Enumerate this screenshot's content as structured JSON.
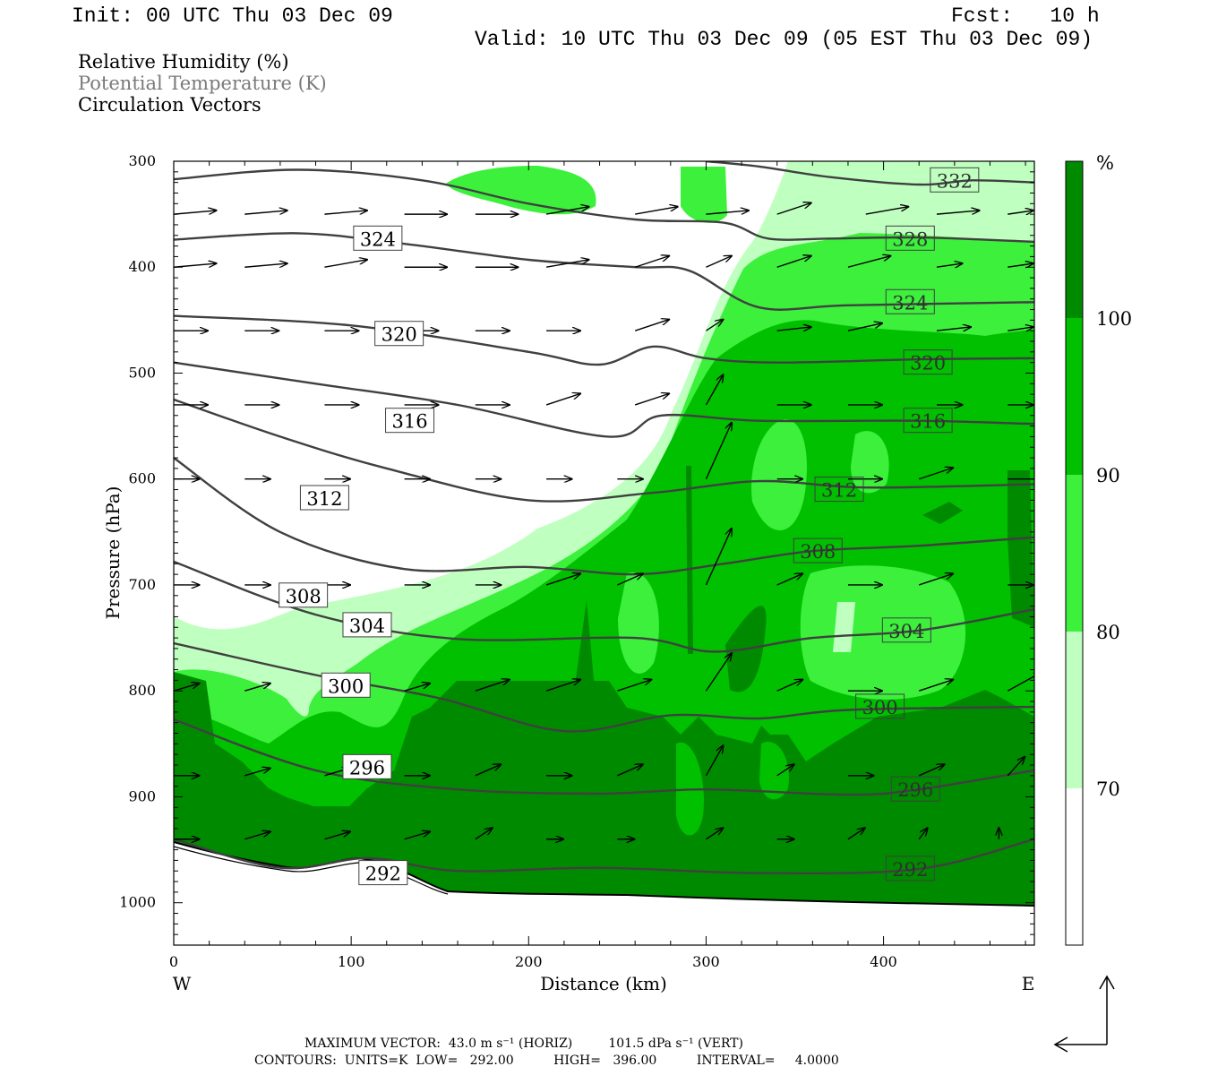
{
  "header": {
    "init": "Init: 00 UTC Thu 03 Dec 09",
    "fcst": "Fcst:   10 h",
    "valid": "Valid: 10 UTC Thu 03 Dec 09 (05 EST Thu 03 Dec 09)"
  },
  "legend": {
    "line1": "Relative Humidity (%)",
    "line2": "Potential Temperature (K)",
    "line3": "Circulation Vectors"
  },
  "footer": {
    "line1": "MAXIMUM VECTOR:  43.0 m s⁻¹ (HORIZ)         101.5 dPa s⁻¹ (VERT)",
    "line2": "CONTOURS:  UNITS=K  LOW=   292.00          HIGH=   396.00          INTERVAL=     4.0000"
  },
  "colors": {
    "rh_70_80": "#bfffbf",
    "rh_80_90": "#3cf03c",
    "rh_90_100": "#00c000",
    "rh_100": "#008a00",
    "theta_line": "#404040"
  },
  "chart_data": {
    "type": "cross-section",
    "xlabel": "Distance (km)",
    "ylabel": "Pressure (hPa)",
    "xlim": [
      0,
      485
    ],
    "ylim": [
      1040,
      300
    ],
    "x_ticks": [
      0,
      100,
      200,
      300,
      400
    ],
    "y_ticks": [
      300,
      400,
      500,
      600,
      700,
      800,
      900,
      1000
    ],
    "x_end_labels": {
      "left": "W",
      "right": "E"
    },
    "colorbar": {
      "unit": "%",
      "levels": [
        70,
        80,
        90,
        100
      ]
    },
    "theta_contours": [
      {
        "label": "332",
        "label_x": 440,
        "label_p": 318,
        "points": [
          [
            300,
            300
          ],
          [
            330,
            305
          ],
          [
            370,
            315
          ],
          [
            420,
            322
          ],
          [
            450,
            318
          ],
          [
            485,
            320
          ]
        ]
      },
      {
        "label": "328",
        "label_x": 415,
        "label_p": 373,
        "points": [
          [
            0,
            317
          ],
          [
            70,
            308
          ],
          [
            140,
            318
          ],
          [
            200,
            340
          ],
          [
            260,
            355
          ],
          [
            310,
            358
          ],
          [
            335,
            373
          ],
          [
            370,
            373
          ],
          [
            420,
            372
          ],
          [
            485,
            376
          ]
        ]
      },
      {
        "label": "324",
        "label_x": 115,
        "label_p": 373,
        "points": [
          [
            0,
            374
          ],
          [
            70,
            368
          ],
          [
            130,
            378
          ],
          [
            200,
            393
          ],
          [
            260,
            400
          ],
          [
            290,
            403
          ],
          [
            330,
            438
          ],
          [
            380,
            436
          ],
          [
            485,
            433
          ]
        ]
      },
      {
        "label": "324",
        "label_x": 415,
        "label_p": 433
      },
      {
        "label": "320",
        "label_x": 127,
        "label_p": 463,
        "points": [
          [
            0,
            446
          ],
          [
            100,
            455
          ],
          [
            200,
            480
          ],
          [
            240,
            492
          ],
          [
            270,
            475
          ],
          [
            300,
            486
          ],
          [
            340,
            490
          ],
          [
            420,
            487
          ],
          [
            485,
            486
          ]
        ]
      },
      {
        "label": "320",
        "label_x": 425,
        "label_p": 490
      },
      {
        "label": "316",
        "label_x": 133,
        "label_p": 545,
        "points": [
          [
            0,
            490
          ],
          [
            80,
            510
          ],
          [
            160,
            530
          ],
          [
            245,
            560
          ],
          [
            275,
            540
          ],
          [
            330,
            545
          ],
          [
            420,
            545
          ],
          [
            485,
            548
          ]
        ]
      },
      {
        "label": "316",
        "label_x": 425,
        "label_p": 545
      },
      {
        "label": "312",
        "label_x": 85,
        "label_p": 618,
        "points": [
          [
            0,
            525
          ],
          [
            60,
            560
          ],
          [
            120,
            590
          ],
          [
            200,
            620
          ],
          [
            270,
            613
          ],
          [
            330,
            602
          ],
          [
            390,
            608
          ],
          [
            485,
            605
          ]
        ]
      },
      {
        "label": "312",
        "label_x": 375,
        "label_p": 610
      },
      {
        "label": "308",
        "label_x": 73,
        "label_p": 710,
        "points": [
          [
            0,
            580
          ],
          [
            60,
            650
          ],
          [
            130,
            685
          ],
          [
            200,
            683
          ],
          [
            260,
            690
          ],
          [
            310,
            680
          ],
          [
            360,
            668
          ],
          [
            420,
            663
          ],
          [
            485,
            655
          ]
        ]
      },
      {
        "label": "308",
        "label_x": 363,
        "label_p": 668
      },
      {
        "label": "304",
        "label_x": 109,
        "label_p": 738,
        "points": [
          [
            0,
            678
          ],
          [
            80,
            728
          ],
          [
            160,
            751
          ],
          [
            260,
            750
          ],
          [
            305,
            763
          ],
          [
            360,
            750
          ],
          [
            420,
            743
          ],
          [
            485,
            723
          ]
        ]
      },
      {
        "label": "304",
        "label_x": 413,
        "label_p": 743
      },
      {
        "label": "300",
        "label_x": 97,
        "label_p": 795,
        "points": [
          [
            0,
            755
          ],
          [
            80,
            785
          ],
          [
            150,
            807
          ],
          [
            220,
            838
          ],
          [
            280,
            823
          ],
          [
            330,
            826
          ],
          [
            380,
            818
          ],
          [
            485,
            815
          ]
        ]
      },
      {
        "label": "300",
        "label_x": 398,
        "label_p": 815
      },
      {
        "label": "296",
        "label_x": 109,
        "label_p": 872,
        "points": [
          [
            0,
            827
          ],
          [
            80,
            875
          ],
          [
            160,
            893
          ],
          [
            240,
            897
          ],
          [
            300,
            893
          ],
          [
            380,
            898
          ],
          [
            420,
            893
          ],
          [
            485,
            875
          ]
        ]
      },
      {
        "label": "296",
        "label_x": 418,
        "label_p": 893
      },
      {
        "label": "292",
        "label_x": 118,
        "label_p": 972,
        "points": [
          [
            0,
            940
          ],
          [
            60,
            967
          ],
          [
            110,
            958
          ],
          [
            160,
            970
          ],
          [
            240,
            967
          ],
          [
            330,
            972
          ],
          [
            420,
            968
          ],
          [
            485,
            940
          ]
        ]
      },
      {
        "label": "292",
        "label_x": 415,
        "label_p": 968
      }
    ],
    "vectors": [
      [
        0,
        350,
        25,
        -1
      ],
      [
        40,
        350,
        25,
        -1
      ],
      [
        85,
        350,
        25,
        -1
      ],
      [
        130,
        350,
        25,
        0
      ],
      [
        170,
        350,
        25,
        0
      ],
      [
        210,
        350,
        25,
        -2
      ],
      [
        260,
        350,
        25,
        -2
      ],
      [
        300,
        350,
        25,
        -1
      ],
      [
        340,
        350,
        20,
        -3
      ],
      [
        390,
        350,
        25,
        -2
      ],
      [
        430,
        350,
        25,
        -1
      ],
      [
        470,
        350,
        15,
        -1
      ],
      [
        0,
        400,
        25,
        -1
      ],
      [
        40,
        400,
        25,
        -1
      ],
      [
        85,
        400,
        25,
        -2
      ],
      [
        130,
        400,
        25,
        0
      ],
      [
        170,
        400,
        25,
        0
      ],
      [
        210,
        400,
        25,
        -2
      ],
      [
        260,
        400,
        20,
        -3
      ],
      [
        300,
        400,
        15,
        -3
      ],
      [
        340,
        400,
        20,
        -3
      ],
      [
        380,
        400,
        25,
        -3
      ],
      [
        430,
        400,
        15,
        -1
      ],
      [
        470,
        400,
        15,
        -1
      ],
      [
        0,
        460,
        20,
        0
      ],
      [
        40,
        460,
        20,
        0
      ],
      [
        85,
        460,
        20,
        0
      ],
      [
        130,
        460,
        20,
        0
      ],
      [
        170,
        460,
        20,
        0
      ],
      [
        210,
        460,
        20,
        0
      ],
      [
        260,
        460,
        20,
        -3
      ],
      [
        300,
        460,
        10,
        -3
      ],
      [
        340,
        460,
        20,
        -1
      ],
      [
        380,
        460,
        20,
        -2
      ],
      [
        430,
        460,
        20,
        -1
      ],
      [
        470,
        460,
        15,
        -1
      ],
      [
        0,
        530,
        20,
        0
      ],
      [
        40,
        530,
        20,
        0
      ],
      [
        85,
        530,
        20,
        0
      ],
      [
        130,
        530,
        20,
        0
      ],
      [
        170,
        530,
        20,
        0
      ],
      [
        210,
        530,
        20,
        -3
      ],
      [
        260,
        530,
        20,
        -3
      ],
      [
        300,
        530,
        10,
        -8
      ],
      [
        340,
        530,
        20,
        0
      ],
      [
        380,
        530,
        20,
        0
      ],
      [
        430,
        530,
        15,
        0
      ],
      [
        470,
        530,
        15,
        0
      ],
      [
        0,
        600,
        15,
        0
      ],
      [
        40,
        600,
        15,
        0
      ],
      [
        85,
        600,
        15,
        0
      ],
      [
        130,
        600,
        15,
        0
      ],
      [
        170,
        600,
        15,
        0
      ],
      [
        210,
        600,
        15,
        0
      ],
      [
        250,
        600,
        15,
        0
      ],
      [
        300,
        600,
        15,
        -15
      ],
      [
        340,
        600,
        15,
        0
      ],
      [
        380,
        600,
        20,
        0
      ],
      [
        420,
        600,
        20,
        -3
      ],
      [
        470,
        600,
        20,
        0
      ],
      [
        0,
        700,
        15,
        0
      ],
      [
        40,
        700,
        15,
        0
      ],
      [
        85,
        700,
        15,
        0
      ],
      [
        130,
        700,
        15,
        0
      ],
      [
        170,
        700,
        15,
        0
      ],
      [
        210,
        700,
        20,
        -3
      ],
      [
        250,
        700,
        15,
        -3
      ],
      [
        300,
        700,
        15,
        -15
      ],
      [
        340,
        700,
        15,
        -3
      ],
      [
        380,
        700,
        20,
        0
      ],
      [
        420,
        700,
        20,
        -3
      ],
      [
        470,
        700,
        15,
        0
      ],
      [
        0,
        800,
        15,
        -2
      ],
      [
        40,
        800,
        15,
        -2
      ],
      [
        85,
        800,
        15,
        -2
      ],
      [
        130,
        800,
        15,
        -2
      ],
      [
        170,
        800,
        20,
        -3
      ],
      [
        210,
        800,
        20,
        -3
      ],
      [
        250,
        800,
        20,
        -3
      ],
      [
        300,
        800,
        15,
        -10
      ],
      [
        340,
        800,
        15,
        -3
      ],
      [
        380,
        800,
        20,
        0
      ],
      [
        420,
        800,
        20,
        -3
      ],
      [
        470,
        800,
        20,
        -5
      ],
      [
        0,
        880,
        15,
        0
      ],
      [
        40,
        880,
        15,
        -2
      ],
      [
        85,
        880,
        15,
        -2
      ],
      [
        130,
        880,
        15,
        0
      ],
      [
        170,
        880,
        15,
        -3
      ],
      [
        210,
        880,
        15,
        0
      ],
      [
        250,
        880,
        15,
        -3
      ],
      [
        300,
        880,
        10,
        -8
      ],
      [
        340,
        880,
        10,
        -3
      ],
      [
        380,
        880,
        15,
        0
      ],
      [
        420,
        880,
        15,
        -3
      ],
      [
        470,
        880,
        10,
        -5
      ],
      [
        0,
        940,
        15,
        0
      ],
      [
        40,
        940,
        15,
        -2
      ],
      [
        85,
        940,
        15,
        -2
      ],
      [
        130,
        940,
        15,
        -2
      ],
      [
        170,
        940,
        10,
        -3
      ],
      [
        210,
        940,
        10,
        0
      ],
      [
        250,
        940,
        10,
        0
      ],
      [
        300,
        940,
        10,
        -3
      ],
      [
        340,
        940,
        10,
        0
      ],
      [
        380,
        940,
        10,
        -3
      ],
      [
        420,
        940,
        5,
        -3
      ],
      [
        465,
        940,
        0,
        -3
      ]
    ]
  }
}
